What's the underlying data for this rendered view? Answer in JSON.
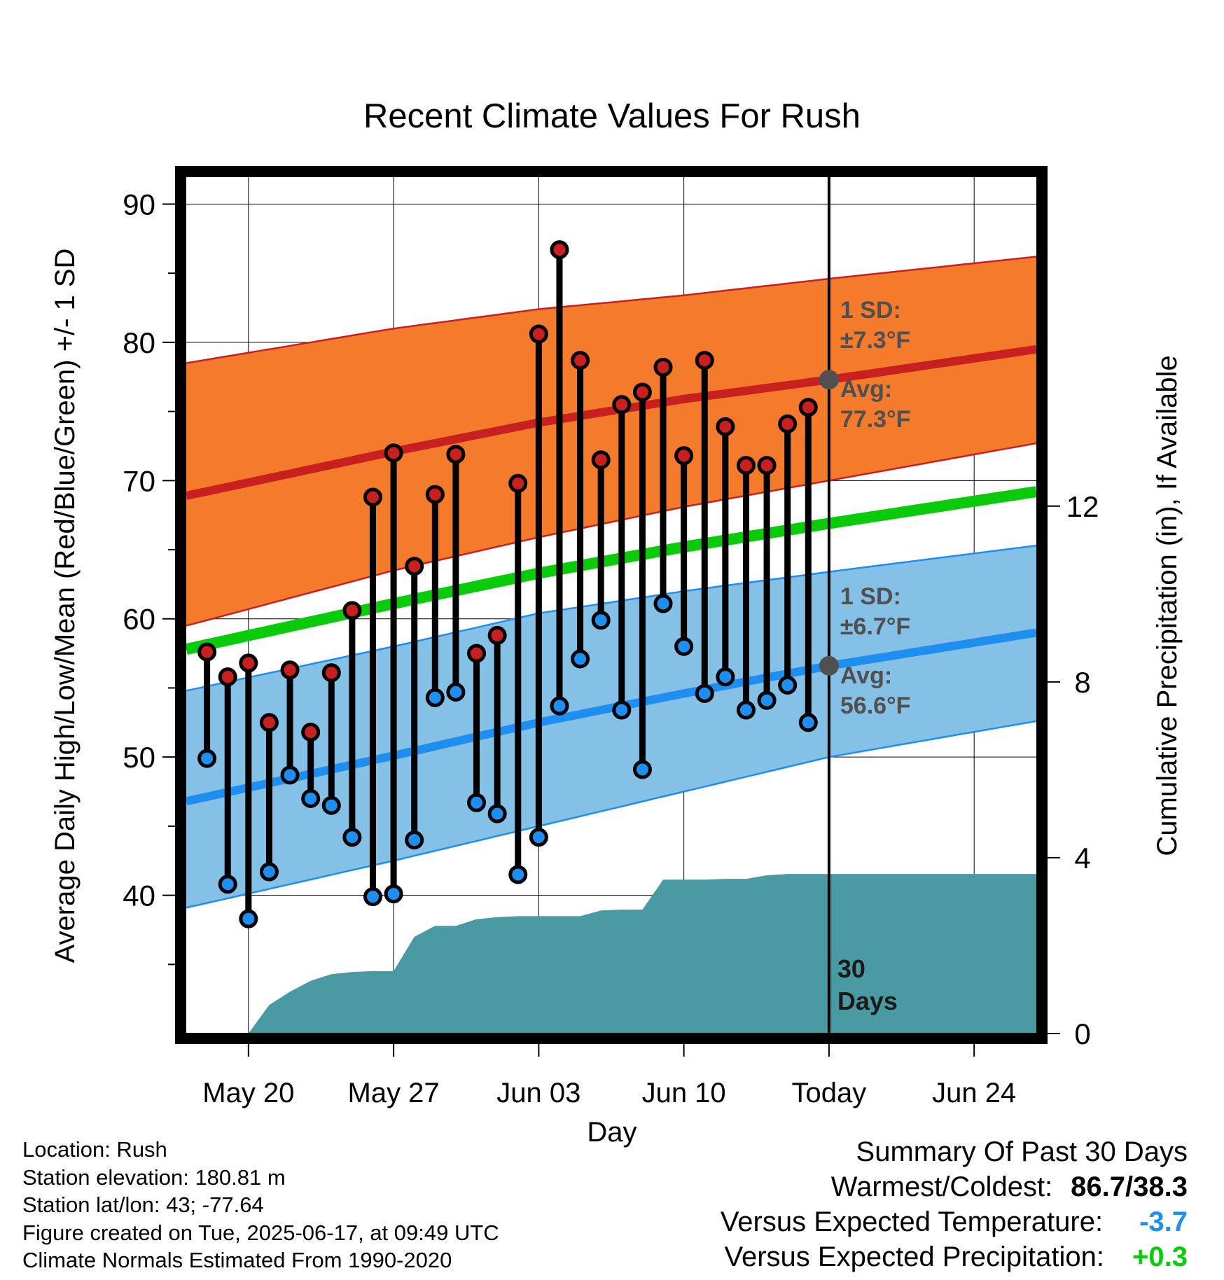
{
  "chart_data": {
    "type": "line",
    "title": "Recent Climate Values For Rush",
    "xlabel": "Day",
    "ylabel": "Average Daily High/Low/Mean (Red/Blue/Green) +/- 1 SD",
    "y2label": "Cumulative Precipitation (in), If Available",
    "x_tick_labels": [
      "May 20",
      "May 27",
      "Jun 03",
      "Jun 10",
      "Today",
      "Jun 24"
    ],
    "x_range_days": [
      "2025-05-17",
      "2025-06-27"
    ],
    "ylim": [
      30,
      92
    ],
    "yticks": [
      40,
      50,
      60,
      70,
      80,
      90
    ],
    "y2lim": [
      0,
      19.5
    ],
    "y2ticks": [
      0,
      4,
      8,
      12
    ],
    "today": "2025-06-17",
    "today_label": "Today",
    "window_label": "30 Days",
    "grid": true,
    "normals": {
      "dates": [
        "2025-05-17",
        "2025-05-27",
        "2025-06-03",
        "2025-06-10",
        "2025-06-17",
        "2025-06-27"
      ],
      "high_avg": [
        68.9,
        72.1,
        74.2,
        75.9,
        77.3,
        79.5
      ],
      "low_avg": [
        46.8,
        50.1,
        52.5,
        54.6,
        56.6,
        59.0
      ],
      "mean_avg": [
        57.8,
        61.1,
        63.3,
        65.2,
        66.9,
        69.2
      ],
      "high_sd_upper": [
        78.5,
        81.0,
        82.4,
        83.4,
        84.6,
        86.2
      ],
      "high_sd_lower": [
        59.5,
        63.5,
        65.9,
        68.1,
        70.0,
        72.7
      ],
      "low_sd_upper": [
        54.8,
        58.0,
        60.4,
        62.0,
        63.4,
        65.3
      ],
      "low_sd_lower": [
        39.1,
        42.5,
        45.0,
        47.5,
        50.0,
        52.6
      ]
    },
    "annotations": {
      "high": {
        "sd_text": "1 SD:",
        "sd_value": "±7.3°F",
        "avg_text": "Avg:",
        "avg_value": "77.3°F",
        "avg": 77.3
      },
      "low": {
        "sd_text": "1 SD:",
        "sd_value": "±6.7°F",
        "avg_text": "Avg:",
        "avg_value": "56.6°F",
        "avg": 56.6
      }
    },
    "daily": {
      "dates": [
        "2025-05-18",
        "2025-05-19",
        "2025-05-20",
        "2025-05-21",
        "2025-05-22",
        "2025-05-23",
        "2025-05-24",
        "2025-05-25",
        "2025-05-26",
        "2025-05-27",
        "2025-05-28",
        "2025-05-29",
        "2025-05-30",
        "2025-05-31",
        "2025-06-01",
        "2025-06-02",
        "2025-06-03",
        "2025-06-04",
        "2025-06-05",
        "2025-06-06",
        "2025-06-07",
        "2025-06-08",
        "2025-06-09",
        "2025-06-10",
        "2025-06-11",
        "2025-06-12",
        "2025-06-13",
        "2025-06-14",
        "2025-06-15",
        "2025-06-16"
      ],
      "high": [
        57.6,
        55.8,
        56.8,
        52.5,
        56.3,
        51.8,
        56.1,
        60.6,
        68.8,
        72.0,
        63.8,
        69.0,
        71.9,
        57.5,
        58.8,
        69.8,
        80.6,
        86.7,
        78.7,
        71.5,
        75.5,
        76.4,
        78.2,
        71.8,
        78.7,
        73.9,
        71.1,
        71.1,
        74.1,
        75.3
      ],
      "low": [
        49.9,
        40.8,
        38.3,
        41.7,
        48.7,
        47.0,
        46.5,
        44.2,
        39.9,
        40.1,
        44.0,
        54.3,
        54.7,
        46.7,
        45.9,
        41.5,
        44.2,
        53.7,
        57.1,
        59.9,
        53.4,
        49.1,
        61.1,
        58.0,
        54.6,
        55.8,
        53.4,
        54.1,
        55.2,
        52.5
      ]
    },
    "precipitation": {
      "dates": [
        "2025-05-20",
        "2025-05-21",
        "2025-05-22",
        "2025-05-23",
        "2025-05-24",
        "2025-05-25",
        "2025-05-26",
        "2025-05-27",
        "2025-05-28",
        "2025-05-29",
        "2025-05-30",
        "2025-05-31",
        "2025-06-01",
        "2025-06-02",
        "2025-06-03",
        "2025-06-04",
        "2025-06-05",
        "2025-06-06",
        "2025-06-07",
        "2025-06-08",
        "2025-06-09",
        "2025-06-10",
        "2025-06-11",
        "2025-06-12",
        "2025-06-13",
        "2025-06-14",
        "2025-06-15",
        "2025-06-16",
        "2025-06-17",
        "2025-06-27"
      ],
      "cumulative": [
        0.0,
        0.65,
        0.95,
        1.2,
        1.35,
        1.4,
        1.42,
        1.42,
        2.2,
        2.45,
        2.45,
        2.6,
        2.65,
        2.67,
        2.67,
        2.67,
        2.67,
        2.8,
        2.82,
        2.82,
        3.5,
        3.5,
        3.5,
        3.52,
        3.52,
        3.6,
        3.63,
        3.63,
        3.63,
        3.63
      ]
    },
    "colors": {
      "high": "#c8201f",
      "high_band": "#f47a2c",
      "low": "#1e8ef0",
      "low_band": "#85c0e6",
      "mean": "#0acb0a",
      "precip": "#4a9aa3",
      "annotation": "#505050"
    }
  },
  "info": {
    "location": "Location: Rush",
    "elevation": "Station elevation: 180.81 m",
    "latlon": "Station lat/lon: 43; -77.64",
    "created": "Figure created on Tue, 2025-06-17, at 09:49 UTC",
    "normals": "Climate Normals Estimated From 1990-2020"
  },
  "summary": {
    "title": "Summary Of Past 30 Days",
    "warmest_coldest_label": "Warmest/Coldest:",
    "warmest_coldest_value": "86.7/38.3",
    "temp_label": "Versus Expected Temperature:",
    "temp_value": "-3.7",
    "temp_color": "#1e8ef0",
    "precip_label": "Versus Expected Precipitation:",
    "precip_value": "+0.3",
    "precip_color": "#0acb0a"
  }
}
